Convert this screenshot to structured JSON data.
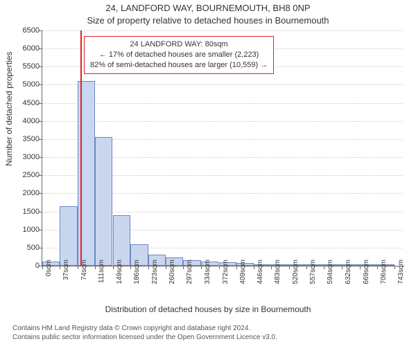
{
  "title": "24, LANDFORD WAY, BOURNEMOUTH, BH8 0NP",
  "subtitle": "Size of property relative to detached houses in Bournemouth",
  "ylabel": "Number of detached properties",
  "xlabel": "Distribution of detached houses by size in Bournemouth",
  "infobox": {
    "line1": "24 LANDFORD WAY: 80sqm",
    "line2": "← 17% of detached houses are smaller (2,223)",
    "line3": "82% of semi-detached houses are larger (10,559) →"
  },
  "footer": {
    "line1": "Contains HM Land Registry data © Crown copyright and database right 2024.",
    "line2": "Contains public sector information licensed under the Open Government Licence v3.0."
  },
  "chart": {
    "type": "histogram",
    "background_color": "#ffffff",
    "bar_fill": "#c9d6ef",
    "bar_border": "#6b87c4",
    "grid_color": "#cccccc",
    "axis_color": "#666666",
    "marker_color": "#d22",
    "font_family": "Arial",
    "title_fontsize": 13,
    "label_fontsize": 12,
    "tick_fontsize": 11,
    "ylim": [
      0,
      6500
    ],
    "ytick_step": 500,
    "yticks": [
      0,
      500,
      1000,
      1500,
      2000,
      2500,
      3000,
      3500,
      4000,
      4500,
      5000,
      5500,
      6000,
      6500
    ],
    "xlim": [
      0,
      760
    ],
    "xtick_step": 37,
    "xticks": [
      0,
      37,
      74,
      111,
      149,
      186,
      223,
      260,
      297,
      334,
      372,
      409,
      446,
      483,
      520,
      557,
      594,
      632,
      669,
      706,
      743
    ],
    "xtick_unit": "sqm",
    "bin_width": 37,
    "marker_x": 80,
    "bins": [
      {
        "x": 0,
        "count": 120
      },
      {
        "x": 37,
        "count": 1650
      },
      {
        "x": 74,
        "count": 5100
      },
      {
        "x": 111,
        "count": 3550
      },
      {
        "x": 149,
        "count": 1400
      },
      {
        "x": 186,
        "count": 600
      },
      {
        "x": 223,
        "count": 300
      },
      {
        "x": 260,
        "count": 230
      },
      {
        "x": 297,
        "count": 160
      },
      {
        "x": 334,
        "count": 110
      },
      {
        "x": 372,
        "count": 90
      },
      {
        "x": 409,
        "count": 70
      },
      {
        "x": 446,
        "count": 40
      },
      {
        "x": 483,
        "count": 20
      },
      {
        "x": 520,
        "count": 10
      },
      {
        "x": 557,
        "count": 8
      },
      {
        "x": 594,
        "count": 6
      },
      {
        "x": 632,
        "count": 5
      },
      {
        "x": 669,
        "count": 4
      },
      {
        "x": 706,
        "count": 3
      }
    ]
  }
}
